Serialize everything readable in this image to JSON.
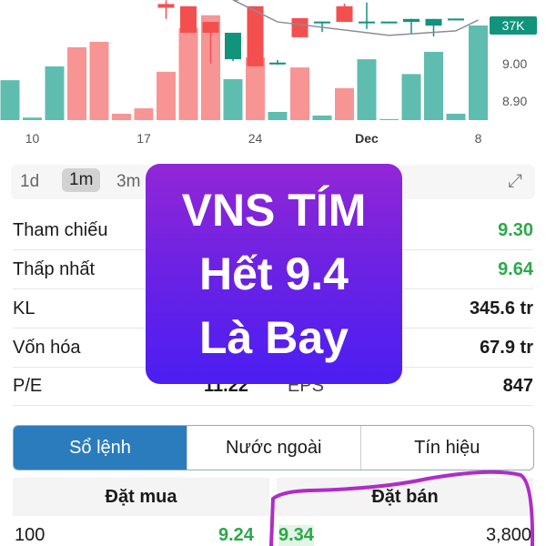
{
  "chart": {
    "x_ticks": [
      {
        "label": "10",
        "bar": 1
      },
      {
        "label": "17",
        "bar": 6
      },
      {
        "label": "24",
        "bar": 11
      },
      {
        "label": "Dec",
        "bar": 16,
        "bold": true
      },
      {
        "label": "8",
        "bar": 21
      }
    ],
    "price_ticks": [
      "9.00",
      "8.90"
    ],
    "price_tick_values": [
      9.0,
      8.9
    ],
    "volume_badge": "37K",
    "volume_unit": "K",
    "volumes": [
      15.6,
      1,
      21,
      28.5,
      30.6,
      2.5,
      4.6,
      18.9,
      36,
      41,
      16,
      24.5,
      3.2,
      20.6,
      1.8,
      12.5,
      23.8,
      0.4,
      18,
      26.7,
      2.5,
      37
    ],
    "volume_dir": [
      "up",
      "up",
      "up",
      "down",
      "down",
      "down",
      "down",
      "down",
      "down",
      "down",
      "up",
      "down",
      "up",
      "down",
      "up",
      "down",
      "up",
      "up",
      "up",
      "up",
      "up",
      "up"
    ],
    "candles": [
      {
        "bar": 7,
        "o": 9.16,
        "c": 9.15,
        "h": 9.17,
        "l": 9.12
      },
      {
        "bar": 8,
        "o": 9.154,
        "c": 9.083,
        "h": 9.154,
        "l": 9.083
      },
      {
        "bar": 9,
        "o": 9.112,
        "c": 9.083,
        "h": 9.112,
        "l": 9.0
      },
      {
        "bar": 10,
        "o": 9.012,
        "c": 9.083,
        "h": 9.083,
        "l": 9.007
      },
      {
        "bar": 11,
        "o": 9.154,
        "c": 8.993,
        "h": 9.154,
        "l": 8.993
      },
      {
        "bar": 12,
        "o": 9.0,
        "c": 9.003,
        "h": 9.01,
        "l": 8.997
      },
      {
        "bar": 13,
        "o": 9.122,
        "c": 9.071,
        "h": 9.122,
        "l": 9.071
      },
      {
        "bar": 14,
        "o": 9.111,
        "c": 9.113,
        "h": 9.113,
        "l": 9.085
      },
      {
        "bar": 15,
        "o": 9.154,
        "c": 9.112,
        "h": 9.161,
        "l": 9.112
      },
      {
        "bar": 16,
        "o": 9.112,
        "c": 9.113,
        "h": 9.164,
        "l": 9.093
      },
      {
        "bar": 17,
        "o": 9.112,
        "c": 9.113,
        "h": 9.113,
        "l": 9.112
      },
      {
        "bar": 18,
        "o": 9.112,
        "c": 9.12,
        "h": 9.12,
        "l": 9.081
      },
      {
        "bar": 19,
        "o": 9.102,
        "c": 9.12,
        "h": 9.12,
        "l": 9.073
      },
      {
        "bar": 20,
        "o": 9.12,
        "c": 9.121,
        "h": 9.121,
        "l": 9.12
      }
    ],
    "ma": [
      [
        10,
        9.171
      ],
      [
        12,
        9.112
      ],
      [
        17,
        9.076
      ],
      [
        20,
        9.088
      ],
      [
        21,
        9.117
      ]
    ],
    "colors": {
      "up": "#12937c",
      "down": "#f44f4f",
      "up_vol": "#5fbdb0",
      "down_vol": "#f79595",
      "ma": "#8b8b9e"
    }
  },
  "periods": {
    "items": [
      "1d",
      "1m",
      "3m"
    ],
    "selected": "1m"
  },
  "stats": [
    {
      "label": "Tham chiếu",
      "value": "9.30",
      "green": true
    },
    {
      "label": "Thấp nhất",
      "value": "9.64",
      "green": true
    },
    {
      "label": "KL",
      "value": "345.6 tr"
    },
    {
      "label": "Vốn hóa",
      "value": "67.9 tr"
    },
    {
      "label": "P/E",
      "mid": "11.22",
      "mid_label": "EPS",
      "value": "847"
    }
  ],
  "overlay": {
    "line1": "VNS TÍM",
    "line2": "Hết 9.4",
    "line3": "Là Bay"
  },
  "tabs": [
    "Sổ lệnh",
    "Nước ngoài",
    "Tín hiệu"
  ],
  "orderbook": {
    "buy_header": "Đặt mua",
    "sell_header": "Đặt bán",
    "rows": [
      {
        "buy_qty": "100",
        "buy_price": "9.24",
        "sell_price": "9.34",
        "sell_qty": "3,800"
      }
    ]
  },
  "annotation_color": "#b02cc8"
}
